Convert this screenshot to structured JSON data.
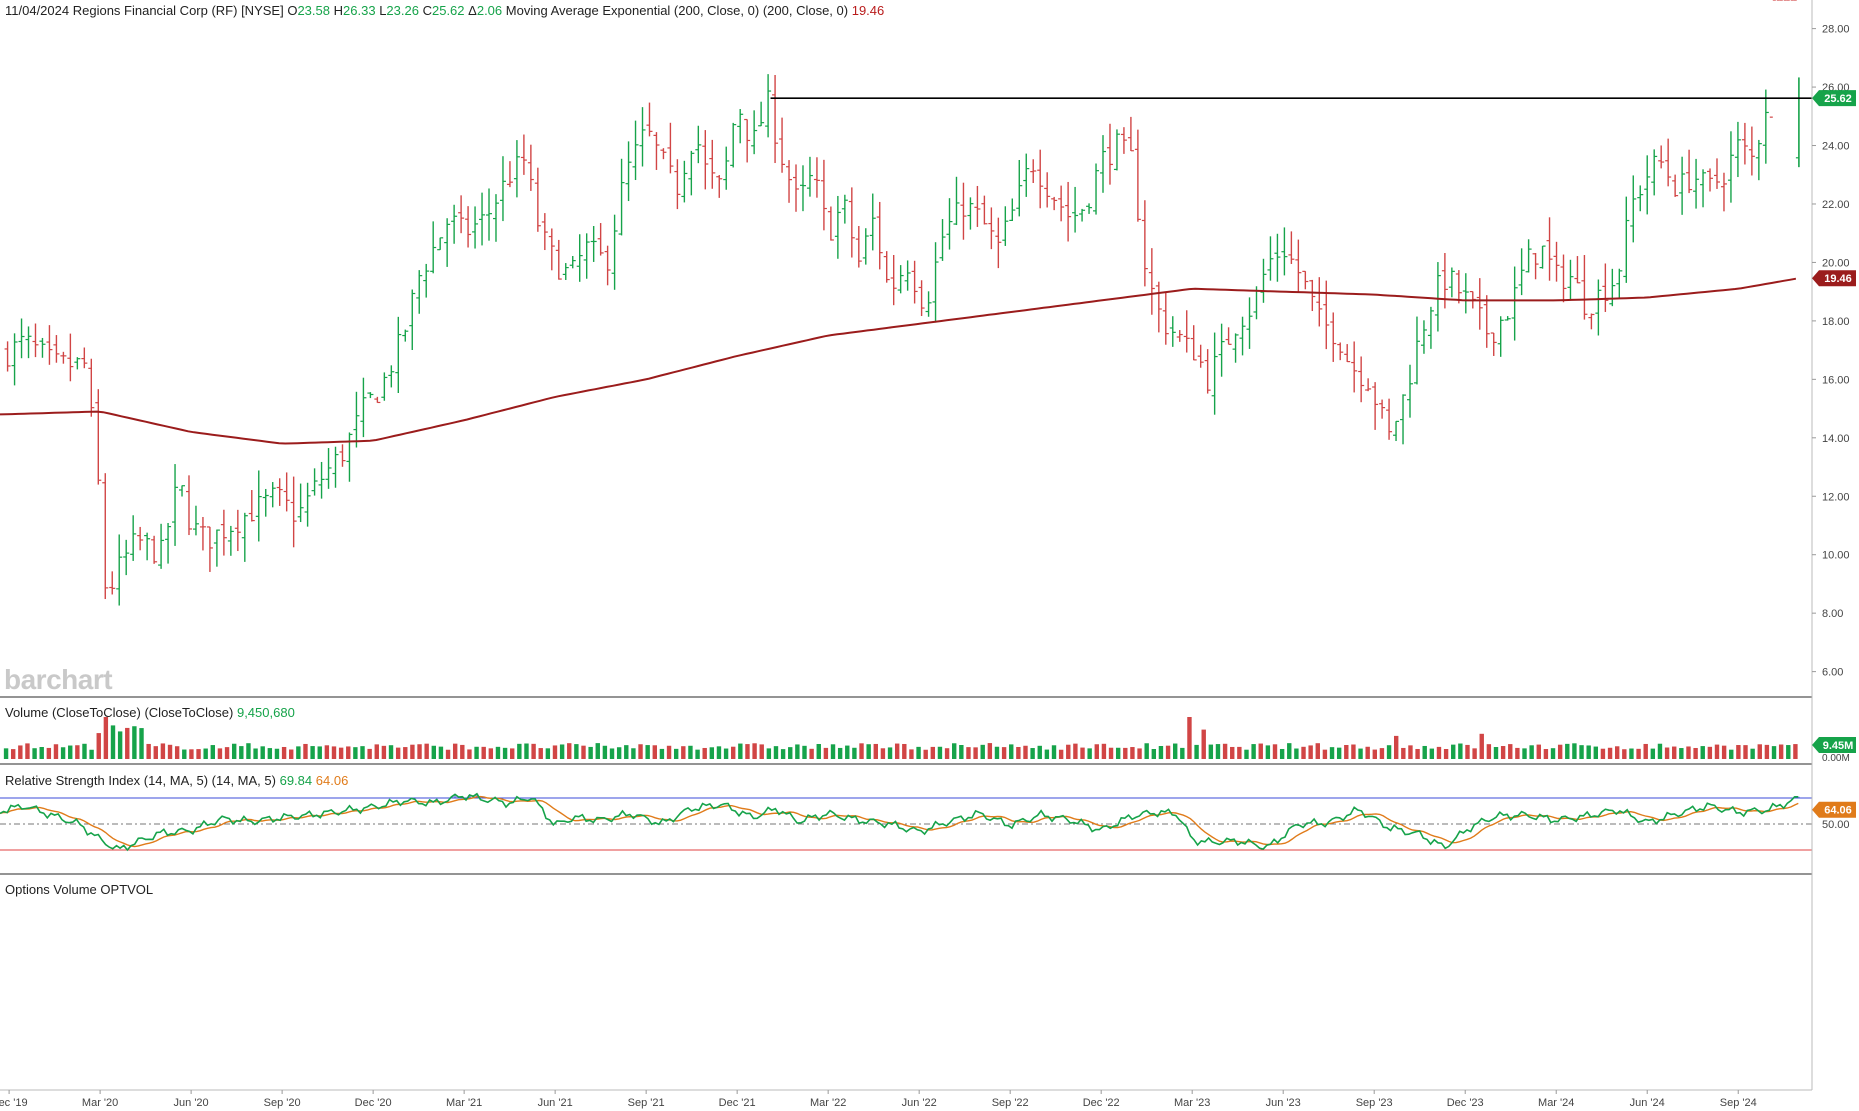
{
  "header": {
    "date": "11/04/2024",
    "instrument": "Regions Financial Corp (RF) [NYSE]",
    "open_label": "O",
    "open": "23.58",
    "high_label": "H",
    "high": "26.33",
    "low_label": "L",
    "low": "23.26",
    "close_label": "C",
    "close": "25.62",
    "change_label": "Δ",
    "change": "2.06",
    "ma_label": "Moving Average Exponential (200, Close, 0)",
    "ma_params": "(200, Close, 0)",
    "ma_value": "19.46"
  },
  "watermark": "barchart",
  "volume_panel": {
    "title": "Volume (CloseToClose)",
    "params": "(CloseToClose)",
    "value": "9,450,680",
    "badge": "9.45M",
    "zero_label": "0.00M"
  },
  "rsi_panel": {
    "title": "Relative Strength Index (14, MA, 5)",
    "params": "(14, MA, 5)",
    "rsi_value": "69.84",
    "ma_value": "64.06",
    "mid_label": "50.00"
  },
  "options_panel": {
    "title": "Options Volume",
    "symbol": "OPTVOL"
  },
  "colors": {
    "up": "#16a34a",
    "down": "#d14545",
    "ema": "#9b1c1c",
    "rsi": "#16a34a",
    "rsi_ma": "#e07b1a",
    "resistance": "#000000",
    "overbought_fill": "#3b4bd8",
    "oversold_fill": "#e04040"
  },
  "chart_data": [
    {
      "type": "ohlc",
      "title": "Regions Financial Corp (RF) [NYSE]",
      "y_ticks": [
        "28.00",
        "26.00",
        "24.00",
        "22.00",
        "20.00",
        "18.00",
        "16.00",
        "14.00",
        "12.00",
        "10.00",
        "8.00",
        "6.00"
      ],
      "ylim": [
        5.2,
        28.5
      ],
      "x_ticks": [
        "Dec '19",
        "Mar '20",
        "Jun '20",
        "Sep '20",
        "Dec '20",
        "Mar '21",
        "Jun '21",
        "Sep '21",
        "Dec '21",
        "Mar '22",
        "Jun '22",
        "Sep '22",
        "Dec '22",
        "Mar '23",
        "Jun '23",
        "Sep '23",
        "Dec '23",
        "Mar '24",
        "Jun '24",
        "Sep '24"
      ],
      "x_tick_months": [
        0,
        3,
        6,
        9,
        12,
        15,
        18,
        21,
        24,
        27,
        30,
        33,
        36,
        39,
        42,
        45,
        48,
        51,
        54,
        57
      ],
      "x_range_months": [
        -0.3,
        59.3
      ],
      "last_price": "25.62",
      "ema_last": "19.46",
      "resistance_level": 25.62,
      "resistance_from_month": 25.1,
      "price_path_months": [
        -0.2,
        0.5,
        1.5,
        2.5,
        2.9,
        3.2,
        3.6,
        4.2,
        5.0,
        5.6,
        6.0,
        6.5,
        7.3,
        8.0,
        8.8,
        9.5,
        10.2,
        11.0,
        11.7,
        12.3,
        13.0,
        13.5,
        14.0,
        14.5,
        15.0,
        15.7,
        16.5,
        17.0,
        17.5,
        18.0,
        18.5,
        19.0,
        19.7,
        20.3,
        21.0,
        21.5,
        22.0,
        22.6,
        23.0,
        23.5,
        24.0,
        24.5,
        25.0,
        25.5,
        26.0,
        26.5,
        27.0,
        27.5,
        28.0,
        28.5,
        29.0,
        29.6,
        30.2,
        30.8,
        31.5,
        32.0,
        32.6,
        33.2,
        33.7,
        34.3,
        35.0,
        35.5,
        36.0,
        36.5,
        37.0,
        37.5,
        38.0,
        38.5,
        38.9,
        39.1,
        39.5,
        40.0,
        40.5,
        41.0,
        41.5,
        42.0,
        42.6,
        43.2,
        43.8,
        44.2,
        44.8,
        45.5,
        46.0,
        46.5,
        47.0,
        47.4,
        47.8,
        48.2,
        48.8,
        49.5,
        50.0,
        50.5,
        51.0,
        51.5,
        52.0,
        52.5,
        53.0,
        53.5,
        54.0,
        54.4,
        55.0,
        55.5,
        56.0,
        56.5,
        57.0,
        57.5,
        58.0,
        58.4,
        58.7,
        59.0
      ],
      "price_path_values": [
        16.8,
        17.3,
        16.5,
        16.5,
        13.0,
        8.5,
        9.5,
        10.5,
        10.0,
        12.5,
        11.0,
        10.5,
        11.0,
        11.5,
        12.0,
        11.3,
        12.5,
        13.5,
        15.0,
        15.8,
        17.5,
        19.5,
        20.5,
        21.5,
        21.0,
        21.5,
        23.0,
        23.5,
        21.0,
        20.0,
        19.5,
        20.5,
        20.0,
        23.0,
        24.5,
        23.5,
        22.5,
        24.5,
        23.0,
        22.5,
        25.5,
        24.0,
        25.5,
        23.5,
        22.0,
        23.0,
        21.0,
        22.0,
        20.0,
        21.5,
        19.0,
        20.0,
        18.5,
        21.0,
        22.0,
        21.5,
        20.5,
        22.0,
        23.5,
        22.5,
        21.5,
        22.0,
        23.5,
        24.0,
        23.5,
        19.5,
        18.0,
        17.5,
        17.0,
        17.0,
        16.0,
        17.0,
        18.0,
        18.5,
        20.0,
        20.5,
        19.5,
        18.0,
        17.5,
        16.5,
        16.0,
        14.0,
        15.5,
        17.5,
        19.0,
        19.5,
        19.0,
        18.5,
        17.5,
        18.5,
        20.0,
        20.5,
        19.5,
        19.5,
        18.5,
        19.0,
        19.5,
        22.0,
        23.0,
        23.5,
        22.5,
        23.0,
        22.5,
        23.0,
        24.0,
        23.5,
        25.8
      ],
      "ema_months": [
        -0.3,
        3,
        6,
        9,
        12,
        15,
        18,
        21,
        24,
        27,
        30,
        33,
        36,
        39,
        42,
        45,
        48,
        51,
        54,
        57,
        59
      ],
      "ema_values": [
        14.8,
        14.9,
        14.2,
        13.8,
        13.9,
        14.6,
        15.4,
        16.0,
        16.8,
        17.5,
        17.9,
        18.3,
        18.7,
        19.1,
        19.0,
        18.9,
        18.7,
        18.7,
        18.8,
        19.1,
        19.46
      ]
    },
    {
      "type": "bar",
      "title": "Volume (CloseToClose)",
      "last_value": "9,450,680",
      "spikes_months": [
        3.2,
        3.5,
        39.0,
        39.3,
        45.7,
        48.5
      ],
      "spikes_relative": [
        1.0,
        0.8,
        1.0,
        0.7,
        0.55,
        0.6
      ]
    },
    {
      "type": "line",
      "title": "Relative Strength Index (14, MA, 5)",
      "ylim": [
        0,
        100
      ],
      "levels": [
        70,
        50,
        30
      ],
      "rsi_months": [
        -0.3,
        0.5,
        1.5,
        2.3,
        3.0,
        3.6,
        4.2,
        5.0,
        6.0,
        7.0,
        8.0,
        9.0,
        10.0,
        11.0,
        12.0,
        13.0,
        14.0,
        15.0,
        15.7,
        16.5,
        17.2,
        18.0,
        18.6,
        19.5,
        20.5,
        21.5,
        22.5,
        23.5,
        24.5,
        25.3,
        26.0,
        27.0,
        28.0,
        29.0,
        30.0,
        31.0,
        32.0,
        33.0,
        34.0,
        35.0,
        36.0,
        37.0,
        37.8,
        38.5,
        39.0,
        39.5,
        40.5,
        41.5,
        42.5,
        43.5,
        44.5,
        45.5,
        46.5,
        47.3,
        48.2,
        49.0,
        50.0,
        51.0,
        52.0,
        53.0,
        54.0,
        55.0,
        56.0,
        57.0,
        58.0,
        59.0
      ],
      "rsi_values": [
        60,
        64,
        56,
        50,
        38,
        30,
        36,
        43,
        45,
        54,
        52,
        55,
        57,
        60,
        63,
        68,
        66,
        72,
        69,
        66,
        71,
        49,
        55,
        53,
        58,
        50,
        62,
        65,
        55,
        62,
        52,
        58,
        53,
        50,
        44,
        52,
        58,
        49,
        57,
        53,
        45,
        56,
        59,
        58,
        38,
        36,
        37,
        32,
        50,
        51,
        61,
        47,
        42,
        32,
        48,
        56,
        57,
        53,
        56,
        61,
        51,
        58,
        64,
        59,
        61,
        69.84
      ],
      "ma_last": 64.06
    },
    {
      "type": "bar",
      "title": "Options Volume",
      "symbol": "OPTVOL"
    }
  ]
}
